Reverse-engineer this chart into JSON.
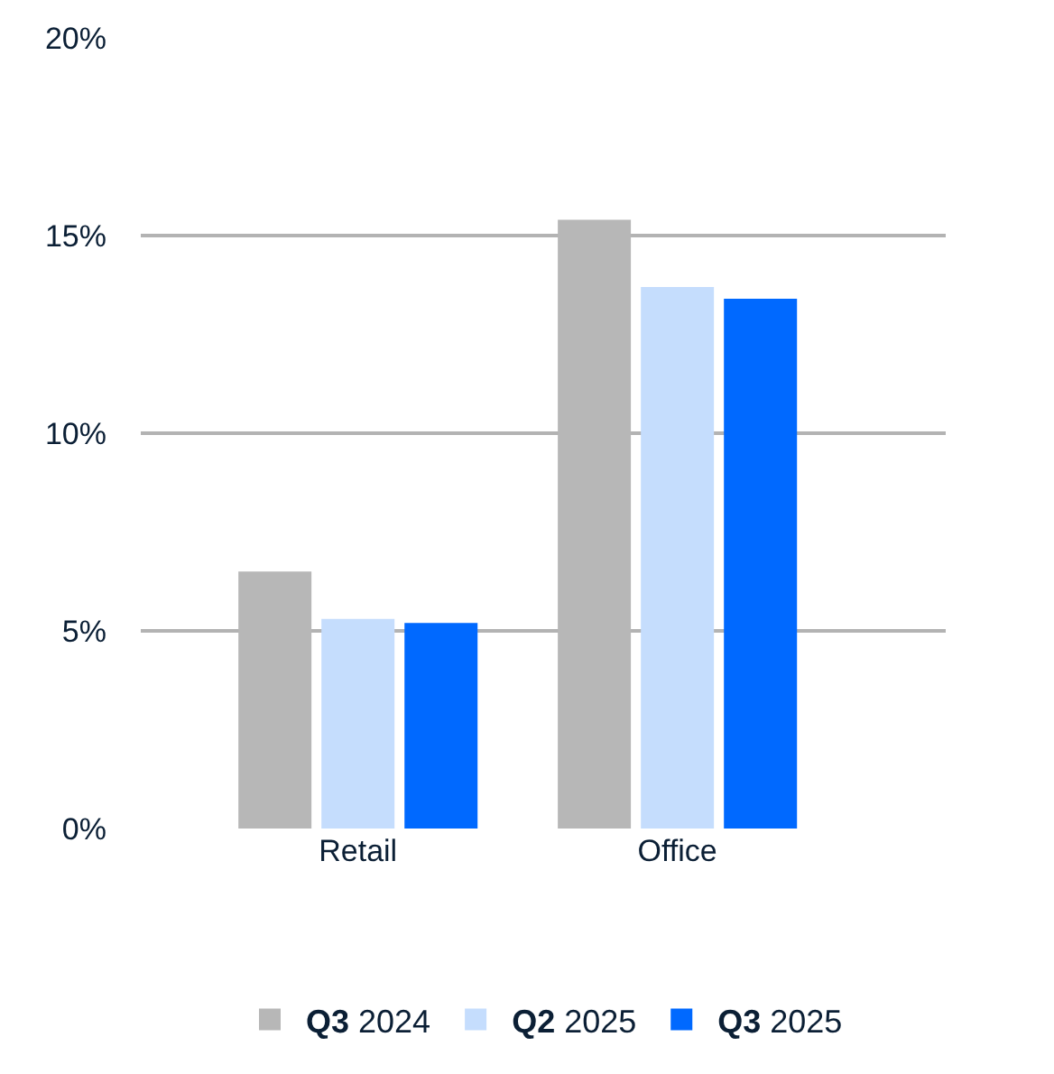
{
  "chart_data": {
    "type": "bar",
    "categories": [
      "Retail",
      "Office"
    ],
    "series": [
      {
        "name": "Q3 2024",
        "color": "#b7b7b7",
        "values": [
          6.5,
          15.4
        ]
      },
      {
        "name": "Q2 2025",
        "color": "#c5ddfd",
        "values": [
          5.3,
          13.7
        ]
      },
      {
        "name": "Q3 2025",
        "color": "#0069ff",
        "values": [
          5.2,
          13.4
        ]
      }
    ],
    "ylim": [
      0,
      20
    ],
    "yticks": [
      {
        "value": 0,
        "label": "0%"
      },
      {
        "value": 5,
        "label": "5%"
      },
      {
        "value": 10,
        "label": "10%"
      },
      {
        "value": 15,
        "label": "15%"
      },
      {
        "value": 20,
        "label": "20%"
      }
    ],
    "grid": "y",
    "legend": "bottom"
  }
}
